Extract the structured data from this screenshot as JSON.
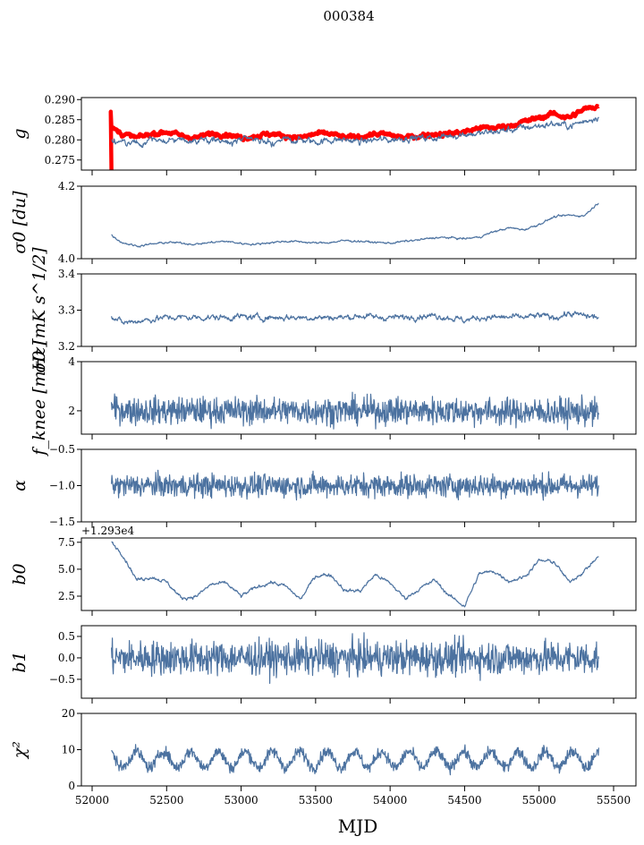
{
  "chart_data": {
    "type": "line",
    "title": "000384",
    "xlabel": "MJD",
    "xlim": [
      51928,
      55650
    ],
    "xticks": [
      52000,
      52500,
      53000,
      53500,
      54000,
      54500,
      55000,
      55500
    ],
    "x_trend": [
      52130,
      52200,
      52300,
      52400,
      52500,
      52600,
      52700,
      52800,
      52900,
      53000,
      53100,
      53200,
      53300,
      53400,
      53500,
      53600,
      53700,
      53800,
      53900,
      54000,
      54100,
      54200,
      54300,
      54400,
      54500,
      54600,
      54700,
      54800,
      54900,
      55000,
      55100,
      55200,
      55300,
      55400
    ],
    "panels": [
      {
        "ylabel": "g",
        "ylim": [
          0.2725,
          0.2905
        ],
        "yticks": [
          "0.275",
          "0.280",
          "0.285",
          "0.290"
        ],
        "ytick_values": [
          0.275,
          0.28,
          0.285,
          0.29
        ],
        "series": [
          {
            "name": "g",
            "color": "#4c72a0",
            "noise": 0.0006,
            "trend": [
              0.28,
              0.2795,
              0.279,
              0.28,
              0.28,
              0.2795,
              0.28,
              0.28,
              0.2795,
              0.28,
              0.28,
              0.2795,
              0.28,
              0.28,
              0.2795,
              0.28,
              0.28,
              0.2795,
              0.28,
              0.28,
              0.2805,
              0.2805,
              0.2805,
              0.281,
              0.2815,
              0.2815,
              0.282,
              0.2825,
              0.283,
              0.2835,
              0.284,
              0.2835,
              0.2845,
              0.286
            ]
          },
          {
            "name": "g_reference",
            "color": "#ff0000",
            "noise": 0.0004,
            "band": true,
            "trend": [
              0.283,
              0.2815,
              0.2805,
              0.2815,
              0.282,
              0.281,
              0.2805,
              0.2815,
              0.2815,
              0.2805,
              0.281,
              0.2815,
              0.281,
              0.2805,
              0.2815,
              0.2815,
              0.2805,
              0.2808,
              0.2815,
              0.2812,
              0.2805,
              0.281,
              0.2815,
              0.2815,
              0.282,
              0.283,
              0.283,
              0.2835,
              0.2845,
              0.2855,
              0.2865,
              0.2855,
              0.2875,
              0.2885
            ]
          }
        ]
      },
      {
        "ylabel": "σ0 [du]",
        "ylim": [
          4.0,
          4.2
        ],
        "yticks": [
          "4.0",
          "4.2"
        ],
        "ytick_values": [
          4.0,
          4.2
        ],
        "series": [
          {
            "name": "sigma0_du",
            "color": "#4c72a0",
            "noise": 0.002,
            "trend": [
              4.065,
              4.045,
              4.035,
              4.04,
              4.045,
              4.043,
              4.04,
              4.045,
              4.048,
              4.042,
              4.04,
              4.045,
              4.048,
              4.047,
              4.043,
              4.045,
              4.05,
              4.048,
              4.045,
              4.043,
              4.048,
              4.052,
              4.058,
              4.058,
              4.055,
              4.06,
              4.075,
              4.085,
              4.08,
              4.095,
              4.115,
              4.12,
              4.118,
              4.155
            ]
          }
        ]
      },
      {
        "ylabel": "σ0 [mK s^1/2]",
        "ylim": [
          3.2,
          3.4
        ],
        "yticks": [
          "3.2",
          "3.3",
          "3.4"
        ],
        "ytick_values": [
          3.2,
          3.3,
          3.4
        ],
        "series": [
          {
            "name": "sigma0_mK",
            "color": "#4c72a0",
            "noise": 0.006,
            "trend": [
              3.285,
              3.265,
              3.27,
              3.275,
              3.28,
              3.28,
              3.28,
              3.28,
              3.28,
              3.282,
              3.28,
              3.28,
              3.28,
              3.28,
              3.28,
              3.28,
              3.28,
              3.285,
              3.28,
              3.28,
              3.28,
              3.285,
              3.285,
              3.28,
              3.272,
              3.28,
              3.28,
              3.28,
              3.28,
              3.285,
              3.28,
              3.29,
              3.285,
              3.28
            ]
          }
        ]
      },
      {
        "ylabel": "f_knee [mHz]",
        "ylim": [
          1.05,
          4.0
        ],
        "yticks": [
          "2",
          "4"
        ],
        "ytick_values": [
          2,
          4
        ],
        "series": [
          {
            "name": "fknee",
            "color": "#4c72a0",
            "noise": 0.28,
            "trend": [
              2.1,
              2.05,
              2.0,
              2.0,
              2.0,
              2.0,
              2.0,
              2.0,
              2.0,
              2.0,
              2.0,
              2.0,
              2.0,
              2.0,
              2.0,
              2.0,
              2.0,
              2.0,
              2.0,
              2.0,
              2.0,
              2.0,
              2.0,
              2.0,
              2.0,
              2.0,
              1.95,
              1.95,
              1.95,
              1.95,
              1.95,
              1.95,
              1.95,
              1.95
            ]
          }
        ]
      },
      {
        "ylabel": "α",
        "ylim": [
          -1.5,
          -0.5
        ],
        "yticks": [
          "−1.5",
          "−1.0",
          "−0.5"
        ],
        "ytick_values": [
          -1.5,
          -1.0,
          -0.5
        ],
        "series": [
          {
            "name": "alpha",
            "color": "#4c72a0",
            "noise": 0.08,
            "trend": [
              -1.0,
              -1.0,
              -1.0,
              -1.0,
              -1.0,
              -1.0,
              -1.0,
              -1.0,
              -1.0,
              -1.0,
              -1.0,
              -1.0,
              -1.0,
              -1.0,
              -1.0,
              -1.0,
              -1.0,
              -1.0,
              -1.0,
              -1.0,
              -1.0,
              -1.0,
              -1.0,
              -1.0,
              -1.0,
              -1.0,
              -1.0,
              -1.0,
              -1.0,
              -1.0,
              -1.0,
              -1.0,
              -1.0,
              -1.0
            ]
          }
        ]
      },
      {
        "ylabel": "b0",
        "offset_label": "+1.293e4",
        "ylim": [
          1.17,
          7.9
        ],
        "yticks": [
          "2.5",
          "5.0",
          "7.5"
        ],
        "ytick_values": [
          2.5,
          5.0,
          7.5
        ],
        "series": [
          {
            "name": "b0",
            "color": "#4c72a0",
            "noise": 0.12,
            "trend": [
              7.5,
              6.5,
              4.0,
              4.3,
              3.8,
              2.3,
              2.5,
              3.6,
              3.7,
              2.5,
              3.3,
              3.8,
              3.4,
              2.2,
              4.4,
              4.5,
              3.0,
              3.0,
              4.5,
              3.7,
              2.3,
              3.2,
              4.0,
              2.5,
              1.6,
              4.6,
              4.8,
              3.9,
              4.3,
              5.8,
              5.7,
              3.8,
              4.8,
              6.2
            ]
          }
        ]
      },
      {
        "ylabel": "b1",
        "ylim": [
          -0.94,
          0.75
        ],
        "yticks": [
          "−0.5",
          "0.0",
          "0.5"
        ],
        "ytick_values": [
          -0.5,
          0,
          0.5
        ],
        "series": [
          {
            "name": "b1",
            "color": "#4c72a0",
            "noise": 0.2,
            "trend": [
              0,
              0,
              0,
              0,
              0,
              0,
              0,
              0,
              0,
              0,
              0,
              0,
              0,
              0,
              0,
              0,
              0,
              0,
              0,
              0,
              0,
              0,
              0,
              0,
              0,
              0,
              0,
              0,
              0,
              0,
              0,
              0,
              0,
              0
            ]
          }
        ]
      },
      {
        "ylabel": "χ²",
        "ylim": [
          0,
          20
        ],
        "yticks": [
          "0",
          "10",
          "20"
        ],
        "ytick_values": [
          0,
          10,
          20
        ],
        "series": [
          {
            "name": "chi2",
            "color": "#4c72a0",
            "noise": 0.8,
            "periodic": {
              "mean": 7.3,
              "amplitude": 2.2,
              "period_days": 183
            },
            "trend": [
              7,
              7,
              7,
              7,
              7,
              7,
              7,
              7,
              7,
              7,
              7,
              7,
              7,
              7,
              7,
              7,
              7,
              7,
              7,
              7,
              7,
              7,
              7,
              7,
              7,
              7,
              7,
              7,
              7,
              7,
              7,
              7,
              7,
              7
            ]
          }
        ]
      }
    ]
  }
}
